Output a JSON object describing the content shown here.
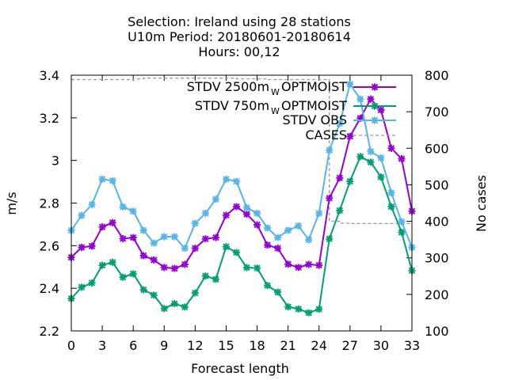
{
  "title_lines": [
    "Selection: Ireland using    28 stations",
    "U10m   Period: 20180601-20180614",
    "Hours:  00,12"
  ],
  "chart_data": {
    "type": "line",
    "xlabel": "Forecast length",
    "ylabel": "m/s",
    "y2label": "No cases",
    "xlim": [
      0,
      33
    ],
    "ylim": [
      2.2,
      3.4
    ],
    "y2lim": [
      100,
      800
    ],
    "x_ticks": [
      0,
      3,
      6,
      9,
      12,
      15,
      18,
      21,
      24,
      27,
      30,
      33
    ],
    "y_ticks": [
      "2.2",
      "2.4",
      "2.6",
      "2.8",
      "3",
      "3.2",
      "3.4"
    ],
    "y2_ticks": [
      "100",
      "200",
      "300",
      "400",
      "500",
      "600",
      "700",
      "800"
    ],
    "x": [
      0,
      1,
      2,
      3,
      4,
      5,
      6,
      7,
      8,
      9,
      10,
      11,
      12,
      13,
      14,
      15,
      16,
      17,
      18,
      19,
      20,
      21,
      22,
      23,
      24,
      25,
      26,
      27,
      28,
      29,
      30,
      31,
      32,
      33
    ],
    "series": [
      {
        "name": "STDV 2500m",
        "name_sub": "W",
        "name_tail": "OPTMOIST",
        "color": "#9400d3",
        "axis": "y1",
        "values": [
          2.545,
          2.592,
          2.598,
          2.688,
          2.708,
          2.633,
          2.638,
          2.553,
          2.533,
          2.498,
          2.493,
          2.512,
          2.588,
          2.632,
          2.638,
          2.743,
          2.783,
          2.748,
          2.698,
          2.603,
          2.588,
          2.513,
          2.498,
          2.512,
          2.508,
          2.823,
          2.918,
          3.113,
          3.198,
          3.288,
          3.237,
          3.057,
          3.008,
          2.762
        ]
      },
      {
        "name": "STDV 750m",
        "name_sub": "W",
        "name_tail": "OPTMOIST",
        "color": "#009e73",
        "axis": "y1",
        "values": [
          2.352,
          2.405,
          2.425,
          2.508,
          2.522,
          2.452,
          2.468,
          2.393,
          2.368,
          2.305,
          2.328,
          2.312,
          2.378,
          2.458,
          2.442,
          2.595,
          2.568,
          2.497,
          2.495,
          2.413,
          2.382,
          2.313,
          2.303,
          2.285,
          2.302,
          2.632,
          2.765,
          2.902,
          3.018,
          2.992,
          2.922,
          2.783,
          2.663,
          2.483
        ]
      },
      {
        "name": "STDV OBS",
        "color": "#56b4e9",
        "axis": "y1",
        "values": [
          2.672,
          2.742,
          2.793,
          2.912,
          2.905,
          2.782,
          2.762,
          2.672,
          2.612,
          2.642,
          2.642,
          2.588,
          2.705,
          2.752,
          2.818,
          2.912,
          2.902,
          2.778,
          2.752,
          2.683,
          2.638,
          2.672,
          2.693,
          2.628,
          2.752,
          3.048,
          3.173,
          3.358,
          3.288,
          3.042,
          3.012,
          2.848,
          2.712,
          2.592
        ]
      },
      {
        "name": "CASES",
        "color": "#999999",
        "axis": "y2",
        "dashed": true,
        "values": [
          788,
          788,
          788,
          788,
          788,
          788,
          790,
          792,
          792,
          792,
          792,
          792,
          792,
          792,
          792,
          792,
          790,
          790,
          790,
          788,
          788,
          788,
          788,
          788,
          788,
          400,
          395,
          394,
          394,
          394,
          394,
          394,
          394,
          394
        ]
      }
    ],
    "legend_position": "top-right",
    "grid": false
  }
}
